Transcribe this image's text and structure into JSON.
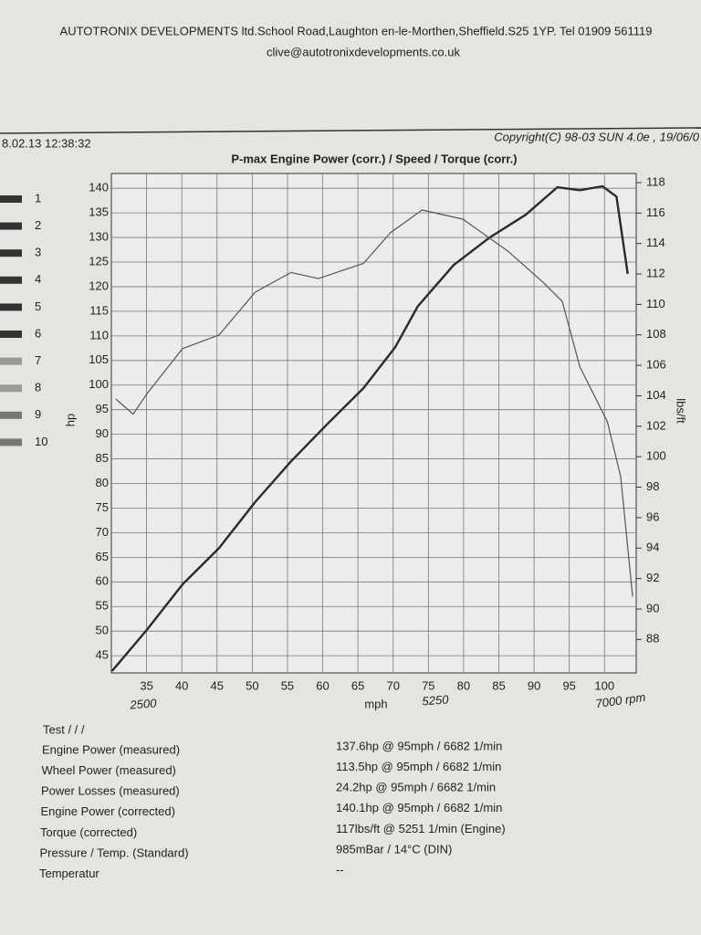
{
  "header": {
    "company": "AUTOTRONIX DEVELOPMENTS ltd.School Road,Laughton en-le-Morthen,Sheffield.S25 1YP. Tel 01909 561119",
    "email": "clive@autotronixdevelopments.co.uk",
    "timestamp": "8.02.13 12:38:32",
    "copyright": "Copyright(C) 98-03 SUN 4.0e , 19/06/0"
  },
  "channels": [
    1,
    2,
    3,
    4,
    5,
    6,
    7,
    8,
    9,
    10
  ],
  "chart_data": {
    "type": "line",
    "title": "P-max Engine Power  (corr.) / Speed / Torque (corr.)",
    "x_label": "mph",
    "y_label": "hp",
    "y2_label": "lbs/ft",
    "xlim": [
      30,
      104.5
    ],
    "xticks": [
      35,
      40,
      45,
      50,
      55,
      60,
      65,
      70,
      75,
      80,
      85,
      90,
      95,
      100
    ],
    "ylim": [
      41.5,
      143
    ],
    "yticks": [
      45,
      50,
      55,
      60,
      65,
      70,
      75,
      80,
      85,
      90,
      95,
      100,
      105,
      110,
      115,
      120,
      125,
      130,
      135,
      140
    ],
    "y2lim": [
      85.8,
      118.6
    ],
    "y2ticks": [
      88,
      90,
      92,
      94,
      96,
      98,
      100,
      102,
      104,
      106,
      108,
      110,
      112,
      114,
      116,
      118
    ],
    "grid": true,
    "series": [
      {
        "color": "#2a2a2a",
        "x": [
          30.1,
          35,
          40.1,
          45.3,
          50.4,
          55.5,
          60.6,
          65.8,
          70.3,
          73.5,
          78.6,
          83.7,
          88.8,
          93.3,
          96.5,
          99.7,
          101.7,
          103.3
        ],
        "values": [
          41.9,
          50.2,
          59.5,
          66.9,
          76.2,
          84.5,
          92,
          99.4,
          107.7,
          116,
          124.4,
          130,
          134.6,
          140.2,
          139.6,
          140.4,
          138.3,
          122.6
        ]
      },
      {
        "color": "#555555",
        "axis": "y2",
        "x": [
          30.6,
          33.1,
          35,
          40.1,
          45.3,
          50.4,
          55.5,
          59.4,
          65.8,
          69.6,
          74.1,
          79.9,
          86.3,
          91.4,
          94,
          96.5,
          100.4,
          102.3,
          104
        ],
        "values": [
          103.8,
          102.8,
          104.1,
          107.1,
          108,
          110.8,
          112.1,
          111.7,
          112.7,
          114.7,
          116.2,
          115.6,
          113.5,
          111.4,
          110.2,
          105.9,
          102.3,
          98.7,
          90.8
        ]
      }
    ],
    "annotations": [
      "2500",
      "5250",
      "7000 rpm"
    ]
  },
  "results": {
    "heading": "Test / / /",
    "rows": [
      [
        "Engine Power (measured)",
        "137.6hp @ 95mph / 6682 1/min"
      ],
      [
        "Wheel Power (measured)",
        "113.5hp @ 95mph / 6682 1/min"
      ],
      [
        "Power Losses (measured)",
        "24.2hp @ 95mph / 6682 1/min"
      ],
      [
        "Engine Power (corrected)",
        "140.1hp @ 95mph / 6682 1/min"
      ],
      [
        "Torque (corrected)",
        "117lbs/ft @ 5251 1/min (Engine)"
      ],
      [
        "Pressure / Temp. (Standard)",
        "985mBar / 14°C (DIN)"
      ],
      [
        "Temperatur",
        "--"
      ]
    ]
  }
}
